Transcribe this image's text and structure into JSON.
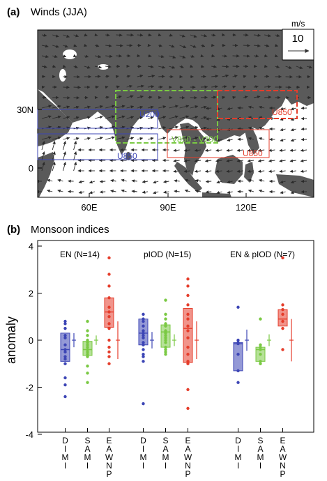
{
  "panel_a": {
    "label": "(a)",
    "title": "Winds (JJA)",
    "unit": "m/s",
    "ref_vector": "10",
    "x_ticks": [
      "60E",
      "90E",
      "120E"
    ],
    "y_ticks": [
      "30N",
      "0"
    ],
    "box_labels": [
      "U850",
      "U200",
      "U850",
      "V850 - V200",
      "U850",
      "U850"
    ],
    "colors": {
      "land": "#5a5a5a",
      "ocean": "#ffffff",
      "blue": "#3c45b5",
      "green": "#7ac943",
      "red": "#e53d2b"
    }
  },
  "panel_b": {
    "label": "(b)",
    "title": "Monsoon indices",
    "ylabel": "anomaly",
    "y_ticks": [
      "4",
      "2",
      "0",
      "-2",
      "-4"
    ],
    "group_labels": [
      "EN (N=14)",
      "pIOD (N=15)",
      "EN & pIOD (N=7)"
    ],
    "index_names": [
      "DIMI",
      "SAMI",
      "EAWNP"
    ]
  },
  "chart_data": {
    "type": "box",
    "ylabel": "anomaly",
    "ylim": [
      -4,
      4
    ],
    "groups": [
      {
        "name": "EN (N=14)",
        "series": [
          {
            "name": "DIMI",
            "color": "#3c45b5",
            "q1": -0.9,
            "median": -0.4,
            "q3": 0.3,
            "points": [
              0.8,
              0.7,
              0.5,
              0.2,
              0.1,
              -0.2,
              -0.4,
              -0.5,
              -0.7,
              -0.8,
              -1.0,
              -1.6,
              -1.9,
              -2.4
            ],
            "mean": 0.0,
            "range": [
              -0.3,
              0.3
            ]
          },
          {
            "name": "SAMI",
            "color": "#7ac943",
            "q1": -0.65,
            "median": -0.4,
            "q3": -0.05,
            "points": [
              0.8,
              0.4,
              0.2,
              0.0,
              -0.1,
              -0.2,
              -0.3,
              -0.4,
              -0.5,
              -0.6,
              -0.7,
              -1.1,
              -1.4,
              -1.8
            ],
            "mean": 0.0,
            "range": [
              -0.2,
              0.2
            ]
          },
          {
            "name": "EAWNP",
            "color": "#e53d2b",
            "q1": 0.55,
            "median": 1.2,
            "q3": 1.8,
            "points": [
              3.5,
              2.8,
              2.3,
              1.8,
              1.4,
              1.2,
              1.0,
              0.7,
              0.5,
              0.0,
              -0.3,
              -0.5,
              -0.7,
              -1.0
            ],
            "mean": 0.0,
            "range": [
              -0.8,
              0.8
            ]
          }
        ]
      },
      {
        "name": "pIOD (N=15)",
        "series": [
          {
            "name": "DIMI",
            "color": "#3c45b5",
            "q1": -0.2,
            "median": 0.3,
            "q3": 0.9,
            "points": [
              1.1,
              0.9,
              0.8,
              0.6,
              0.4,
              0.3,
              0.2,
              0.1,
              -0.1,
              -0.2,
              -0.4,
              -0.6,
              -0.7,
              -0.9,
              -2.7
            ],
            "mean": 0.0,
            "range": [
              -0.35,
              0.35
            ]
          },
          {
            "name": "SAMI",
            "color": "#7ac943",
            "q1": -0.3,
            "median": 0.35,
            "q3": 0.65,
            "points": [
              1.7,
              1.1,
              0.9,
              0.7,
              0.6,
              0.4,
              0.3,
              0.2,
              0.1,
              0.0,
              -0.1,
              -0.3,
              -0.4,
              -0.5,
              -0.6
            ],
            "mean": 0.0,
            "range": [
              -0.25,
              0.25
            ]
          },
          {
            "name": "EAWNP",
            "color": "#e53d2b",
            "q1": -0.95,
            "median": 0.5,
            "q3": 1.35,
            "points": [
              2.6,
              2.3,
              1.9,
              1.5,
              1.1,
              0.9,
              0.6,
              0.4,
              0.1,
              -0.3,
              -0.6,
              -0.9,
              -1.0,
              -2.1,
              -2.9
            ],
            "mean": 0.0,
            "range": [
              -0.8,
              0.8
            ]
          }
        ]
      },
      {
        "name": "EN & pIOD (N=7)",
        "series": [
          {
            "name": "DIMI",
            "color": "#3c45b5",
            "q1": -1.3,
            "median": -0.15,
            "q3": -0.1,
            "points": [
              1.4,
              0.0,
              -0.1,
              -0.15,
              -0.6,
              -1.3,
              -1.8
            ],
            "mean": 0.0,
            "range": [
              -0.45,
              0.45
            ]
          },
          {
            "name": "SAMI",
            "color": "#7ac943",
            "q1": -0.9,
            "median": -0.4,
            "q3": -0.3,
            "points": [
              0.9,
              -0.2,
              -0.3,
              -0.4,
              -0.6,
              -0.9,
              -1.0
            ],
            "mean": 0.0,
            "range": [
              -0.25,
              0.25
            ]
          },
          {
            "name": "EAWNP",
            "color": "#e53d2b",
            "q1": 0.6,
            "median": 0.9,
            "q3": 1.3,
            "points": [
              3.5,
              1.5,
              1.3,
              1.1,
              0.8,
              0.5,
              -0.4
            ],
            "mean": 0.0,
            "range": [
              -0.9,
              0.9
            ]
          }
        ]
      }
    ]
  }
}
